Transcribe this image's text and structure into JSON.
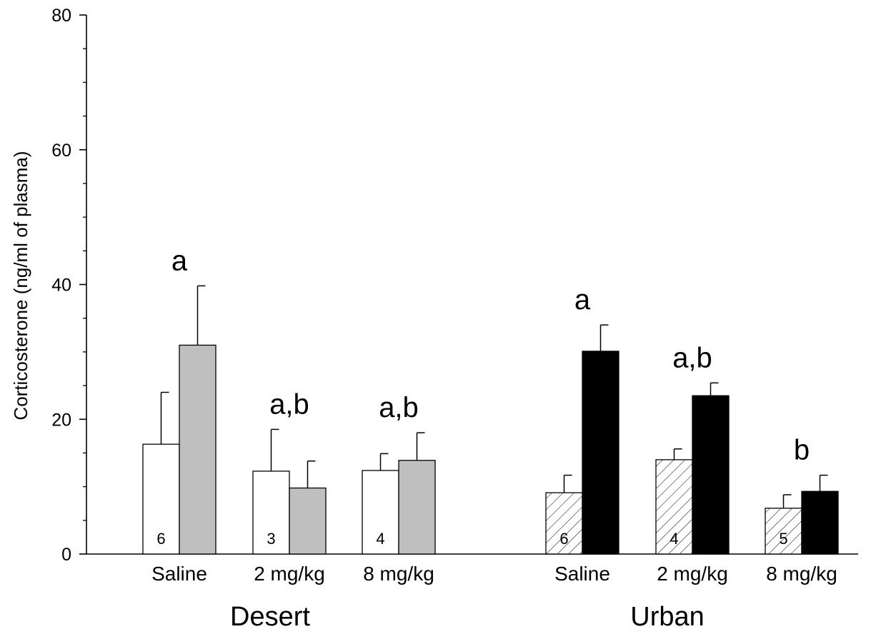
{
  "chart_data": {
    "type": "bar",
    "ylabel": "Corticosterone (ng/ml of plasma)",
    "ylim": [
      0,
      80
    ],
    "y_ticks": [
      0,
      20,
      40,
      60,
      80
    ],
    "y_minor_step": 5,
    "grid": false,
    "groups": [
      {
        "name": "Desert",
        "bar_colors": {
          "baseline": "#ffffff",
          "stress": "#bfbfbf"
        },
        "hatched_baseline": false,
        "categories": [
          {
            "label": "Saline",
            "baseline": 16.3,
            "baseline_err": 7.7,
            "stress": 31.0,
            "stress_err": 8.8,
            "n": "6",
            "letter": "a"
          },
          {
            "label": "2 mg/kg",
            "baseline": 12.3,
            "baseline_err": 6.2,
            "stress": 9.8,
            "stress_err": 4.0,
            "n": "3",
            "letter": "a,b"
          },
          {
            "label": "8 mg/kg",
            "baseline": 12.4,
            "baseline_err": 2.5,
            "stress": 13.9,
            "stress_err": 4.1,
            "n": "4",
            "letter": "a,b"
          }
        ]
      },
      {
        "name": "Urban",
        "bar_colors": {
          "baseline": "#ffffff",
          "stress": "#000000"
        },
        "hatched_baseline": true,
        "categories": [
          {
            "label": "Saline",
            "baseline": 9.1,
            "baseline_err": 2.6,
            "stress": 30.1,
            "stress_err": 3.9,
            "n": "6",
            "letter": "a"
          },
          {
            "label": "2 mg/kg",
            "baseline": 14.0,
            "baseline_err": 1.6,
            "stress": 23.5,
            "stress_err": 1.9,
            "n": "4",
            "letter": "a,b"
          },
          {
            "label": "8 mg/kg",
            "baseline": 6.8,
            "baseline_err": 2.0,
            "stress": 9.3,
            "stress_err": 2.4,
            "n": "5",
            "letter": "b"
          }
        ]
      }
    ]
  }
}
